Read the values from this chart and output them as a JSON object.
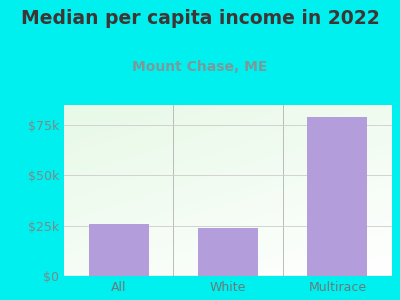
{
  "title": "Median per capita income in 2022",
  "subtitle": "Mount Chase, ME",
  "categories": [
    "All",
    "White",
    "Multirace"
  ],
  "values": [
    26000,
    24000,
    79000
  ],
  "bar_color": "#b39ddb",
  "title_color": "#3d3635",
  "subtitle_color": "#7a9a9a",
  "background_color": "#00f0f0",
  "yticks": [
    0,
    25000,
    50000,
    75000
  ],
  "ytick_labels": [
    "$0",
    "$25k",
    "$50k",
    "$75k"
  ],
  "ylim": [
    0,
    85000
  ],
  "title_fontsize": 13.5,
  "subtitle_fontsize": 10,
  "tick_label_color": "#7a8a8a",
  "xticklabel_color": "#6a7a7a"
}
